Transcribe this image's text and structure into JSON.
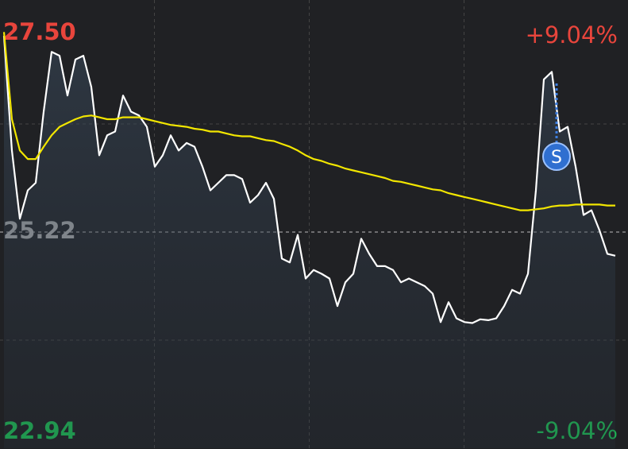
{
  "chart_data": {
    "type": "line",
    "ylim": [
      22.94,
      27.5
    ],
    "yticks": [
      {
        "value": 27.5,
        "label": "27.50"
      },
      25.22,
      22.94
    ],
    "y2lim": [
      -9.04,
      9.04
    ],
    "y2ticks": [
      {
        "value": 9.04,
        "label": "+9.04%"
      },
      {
        "value": -9.04,
        "label": "-9.04%"
      }
    ],
    "up_color": "#e8453c",
    "down_color": "#1db954",
    "flat_color": "#b4b4b4",
    "annotations": [
      "S"
    ],
    "series": [
      {
        "color": "#ffffff",
        "values": [
          27.29,
          26.08,
          25.36,
          25.66,
          25.74,
          26.49,
          27.12,
          27.08,
          26.66,
          27.04,
          27.08,
          26.75,
          26.03,
          26.24,
          26.28,
          26.66,
          26.49,
          26.45,
          26.33,
          25.91,
          26.03,
          26.24,
          26.08,
          26.16,
          26.12,
          25.91,
          25.66,
          25.74,
          25.82,
          25.82,
          25.78,
          25.53,
          25.61,
          25.74,
          25.57,
          24.94,
          24.9,
          25.19,
          24.73,
          24.82,
          24.78,
          24.73,
          24.44,
          24.69,
          24.78,
          25.15,
          24.99,
          24.86,
          24.86,
          24.82,
          24.69,
          24.73,
          24.69,
          24.65,
          24.57,
          24.27,
          24.48,
          24.31,
          24.27,
          24.26,
          24.3,
          24.29,
          24.31,
          24.44,
          24.61,
          24.57,
          24.78,
          25.66,
          26.83,
          26.91,
          26.28,
          26.33,
          25.91,
          25.4,
          25.45,
          25.24,
          24.99,
          24.97
        ]
      },
      {
        "color": "#f2e600",
        "values": [
          27.33,
          26.41,
          26.08,
          25.99,
          25.99,
          26.12,
          26.24,
          26.33,
          26.37,
          26.41,
          26.44,
          26.45,
          26.43,
          26.41,
          26.41,
          26.43,
          26.43,
          26.43,
          26.41,
          26.39,
          26.37,
          26.35,
          26.34,
          26.33,
          26.31,
          26.3,
          26.28,
          26.28,
          26.26,
          26.24,
          26.23,
          26.23,
          26.21,
          26.19,
          26.18,
          26.15,
          26.12,
          26.08,
          26.03,
          25.99,
          25.97,
          25.94,
          25.92,
          25.89,
          25.87,
          25.85,
          25.83,
          25.81,
          25.79,
          25.76,
          25.75,
          25.73,
          25.71,
          25.69,
          25.67,
          25.66,
          25.63,
          25.61,
          25.59,
          25.57,
          25.55,
          25.53,
          25.51,
          25.49,
          25.47,
          25.45,
          25.45,
          25.46,
          25.47,
          25.49,
          25.5,
          25.5,
          25.51,
          25.51,
          25.51,
          25.51,
          25.5,
          25.5
        ]
      }
    ]
  }
}
